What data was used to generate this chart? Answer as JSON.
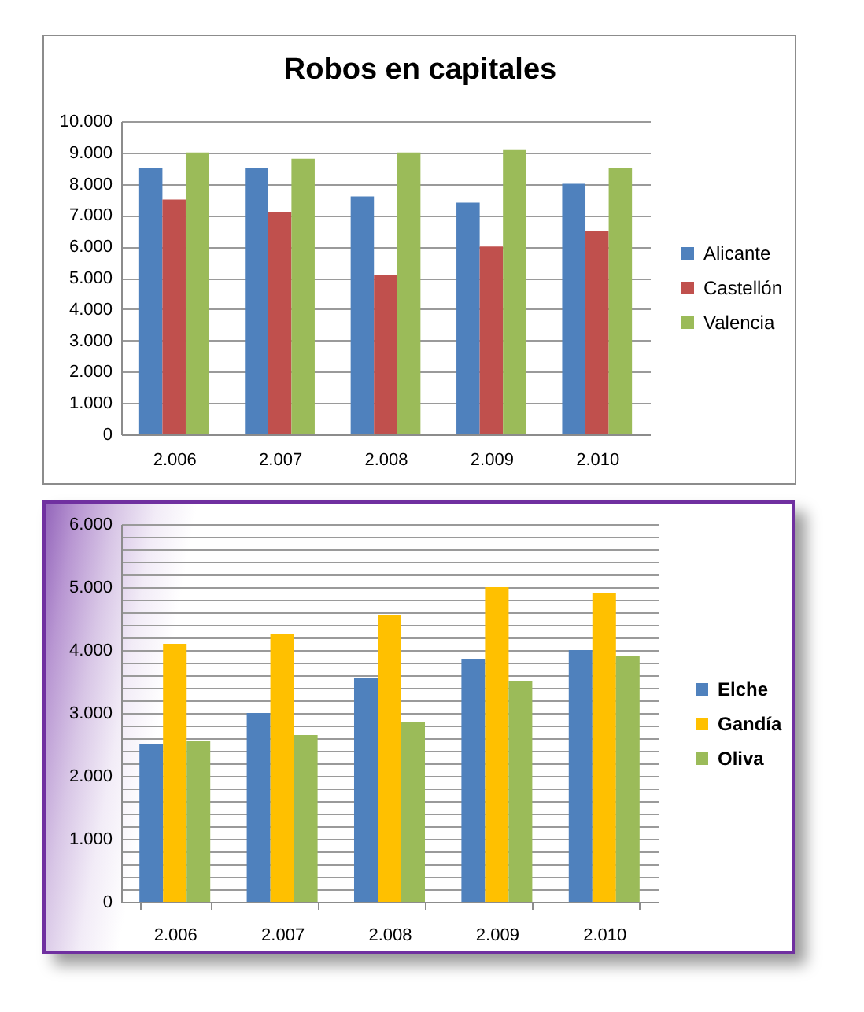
{
  "chart_data": [
    {
      "type": "bar",
      "title": "Robos en capitales",
      "categories": [
        "2.006",
        "2.007",
        "2.008",
        "2.009",
        "2.010"
      ],
      "series": [
        {
          "name": "Alicante",
          "color": "#4f81bd",
          "values": [
            8500,
            8500,
            7600,
            7400,
            8000
          ]
        },
        {
          "name": "Castellón",
          "color": "#c0504d",
          "values": [
            7500,
            7100,
            5100,
            6000,
            6500
          ]
        },
        {
          "name": "Valencia",
          "color": "#9bbb59",
          "values": [
            9000,
            8800,
            9000,
            9100,
            8500
          ]
        }
      ],
      "ylim": [
        0,
        10000
      ],
      "yticks": [
        0,
        {
          "value": 1000,
          "label": "1.000"
        },
        {
          "value": 2000,
          "label": "2.000"
        },
        {
          "value": 3000,
          "label": "3.000"
        },
        {
          "value": 4000,
          "label": "4.000"
        },
        {
          "value": 5000,
          "label": "5.000"
        },
        {
          "value": 6000,
          "label": "6.000"
        },
        {
          "value": 7000,
          "label": "7.000"
        },
        {
          "value": 8000,
          "label": "8.000"
        },
        {
          "value": 9000,
          "label": "9.000"
        },
        {
          "value": 10000,
          "label": "10.000"
        }
      ],
      "grid": "y",
      "legend": "right"
    },
    {
      "type": "bar",
      "categories": [
        "2.006",
        "2.007",
        "2.008",
        "2.009",
        "2.010"
      ],
      "series": [
        {
          "name": "Elche",
          "color": "#4f81bd",
          "values": [
            2500,
            3000,
            3550,
            3850,
            4000
          ]
        },
        {
          "name": "Gandía",
          "color": "#ffc000",
          "values": [
            4100,
            4250,
            4550,
            5000,
            4900
          ]
        },
        {
          "name": "Oliva",
          "color": "#9bbb59",
          "values": [
            2550,
            2650,
            2850,
            3500,
            3900
          ]
        }
      ],
      "ylim": [
        0,
        6000
      ],
      "yticks": [
        0,
        {
          "value": 200,
          "label": null
        },
        {
          "value": 400,
          "label": null
        },
        {
          "value": 600,
          "label": null
        },
        {
          "value": 800,
          "label": null
        },
        {
          "value": 1000,
          "label": "1.000"
        },
        {
          "value": 1200,
          "label": null
        },
        {
          "value": 1400,
          "label": null
        },
        {
          "value": 1600,
          "label": null
        },
        {
          "value": 1800,
          "label": null
        },
        {
          "value": 2000,
          "label": "2.000"
        },
        {
          "value": 2200,
          "label": null
        },
        {
          "value": 2400,
          "label": null
        },
        {
          "value": 2600,
          "label": null
        },
        {
          "value": 2800,
          "label": null
        },
        {
          "value": 3000,
          "label": "3.000"
        },
        {
          "value": 3200,
          "label": null
        },
        {
          "value": 3400,
          "label": null
        },
        {
          "value": 3600,
          "label": null
        },
        {
          "value": 3800,
          "label": null
        },
        {
          "value": 4000,
          "label": "4.000"
        },
        {
          "value": 4200,
          "label": null
        },
        {
          "value": 4400,
          "label": null
        },
        {
          "value": 4600,
          "label": null
        },
        {
          "value": 4800,
          "label": null
        },
        {
          "value": 5000,
          "label": "5.000"
        },
        {
          "value": 5200,
          "label": null
        },
        {
          "value": 5400,
          "label": null
        },
        {
          "value": 5600,
          "label": null
        },
        {
          "value": 5800,
          "label": null
        },
        {
          "value": 6000,
          "label": "6.000"
        }
      ],
      "grid": "y",
      "legend": "right"
    }
  ]
}
